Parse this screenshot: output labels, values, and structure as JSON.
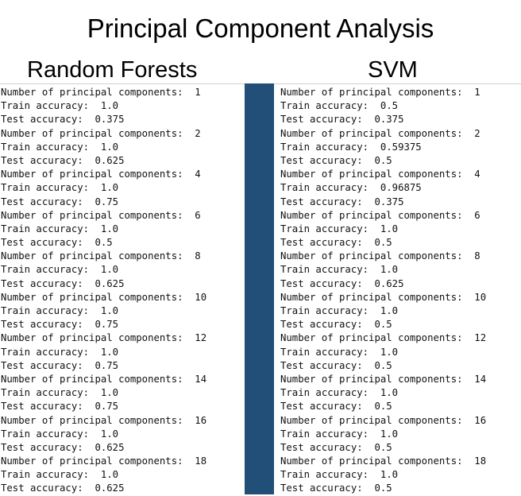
{
  "title": "Principal Component Analysis",
  "columns": [
    {
      "heading": "Random Forests",
      "lines": [
        "Number of principal components:  1",
        "Train accuracy:  1.0",
        "Test accuracy:  0.375",
        "Number of principal components:  2",
        "Train accuracy:  1.0",
        "Test accuracy:  0.625",
        "Number of principal components:  4",
        "Train accuracy:  1.0",
        "Test accuracy:  0.75",
        "Number of principal components:  6",
        "Train accuracy:  1.0",
        "Test accuracy:  0.5",
        "Number of principal components:  8",
        "Train accuracy:  1.0",
        "Test accuracy:  0.625",
        "Number of principal components:  10",
        "Train accuracy:  1.0",
        "Test accuracy:  0.75",
        "Number of principal components:  12",
        "Train accuracy:  1.0",
        "Test accuracy:  0.75",
        "Number of principal components:  14",
        "Train accuracy:  1.0",
        "Test accuracy:  0.75",
        "Number of principal components:  16",
        "Train accuracy:  1.0",
        "Test accuracy:  0.625",
        "Number of principal components:  18",
        "Train accuracy:  1.0",
        "Test accuracy:  0.625"
      ]
    },
    {
      "heading": "SVM",
      "lines": [
        "Number of principal components:  1",
        "Train accuracy:  0.5",
        "Test accuracy:  0.375",
        "Number of principal components:  2",
        "Train accuracy:  0.59375",
        "Test accuracy:  0.5",
        "Number of principal components:  4",
        "Train accuracy:  0.96875",
        "Test accuracy:  0.375",
        "Number of principal components:  6",
        "Train accuracy:  1.0",
        "Test accuracy:  0.5",
        "Number of principal components:  8",
        "Train accuracy:  1.0",
        "Test accuracy:  0.625",
        "Number of principal components:  10",
        "Train accuracy:  1.0",
        "Test accuracy:  0.5",
        "Number of principal components:  12",
        "Train accuracy:  1.0",
        "Test accuracy:  0.5",
        "Number of principal components:  14",
        "Train accuracy:  1.0",
        "Test accuracy:  0.5",
        "Number of principal components:  16",
        "Train accuracy:  1.0",
        "Test accuracy:  0.5",
        "Number of principal components:  18",
        "Train accuracy:  1.0",
        "Test accuracy:  0.5"
      ]
    }
  ],
  "colors": {
    "divider_bar": "#214f77"
  }
}
